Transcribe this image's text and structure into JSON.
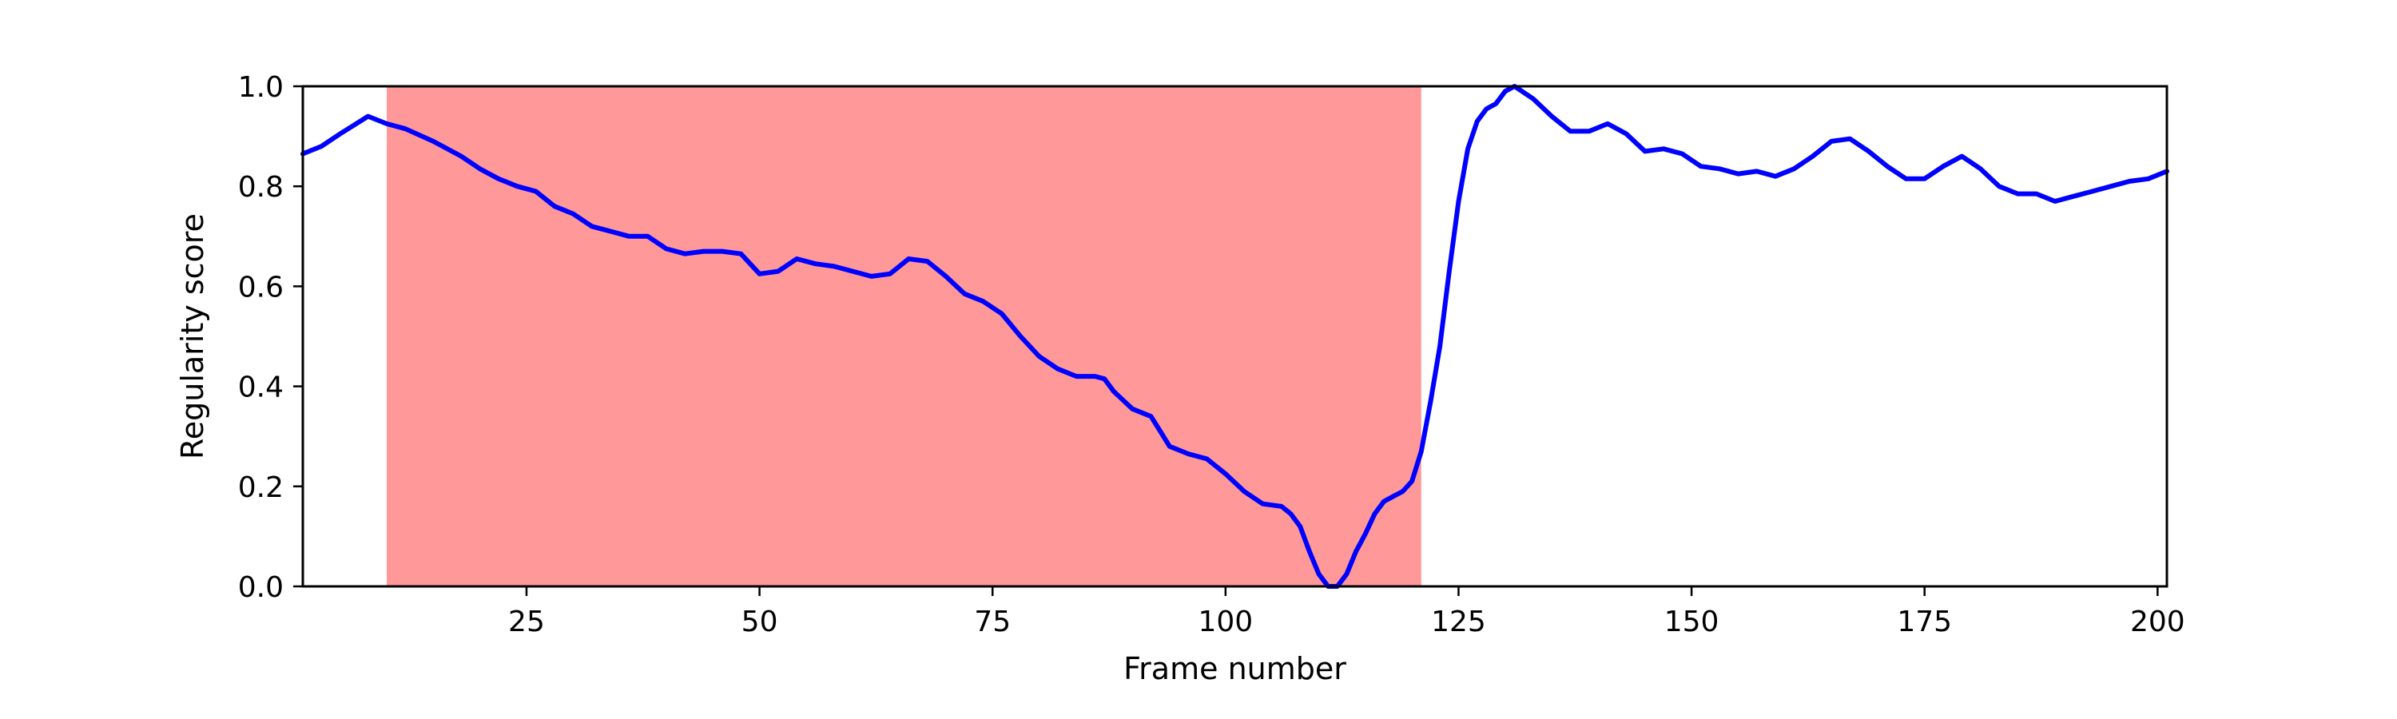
{
  "chart_data": {
    "type": "line",
    "title": "",
    "xlabel": "Frame number",
    "ylabel": "Regularity score",
    "xlim": [
      1,
      201
    ],
    "ylim": [
      0.0,
      1.0
    ],
    "x_ticks": [
      25,
      50,
      75,
      100,
      125,
      150,
      175,
      200
    ],
    "x_tick_labels": [
      "25",
      "50",
      "75",
      "100",
      "125",
      "150",
      "175",
      "200"
    ],
    "y_ticks": [
      0.0,
      0.2,
      0.4,
      0.6,
      0.8,
      1.0
    ],
    "y_tick_labels": [
      "0.0",
      "0.2",
      "0.4",
      "0.6",
      "0.8",
      "1.0"
    ],
    "grid": false,
    "highlight_region": {
      "x_start": 10,
      "x_end": 121,
      "color": "#ff9999"
    },
    "series": [
      {
        "color": "#0000ff",
        "points": [
          [
            1,
            0.865
          ],
          [
            3,
            0.88
          ],
          [
            5,
            0.905
          ],
          [
            8,
            0.94
          ],
          [
            10,
            0.925
          ],
          [
            12,
            0.915
          ],
          [
            15,
            0.89
          ],
          [
            18,
            0.86
          ],
          [
            20,
            0.835
          ],
          [
            22,
            0.815
          ],
          [
            24,
            0.8
          ],
          [
            26,
            0.79
          ],
          [
            28,
            0.76
          ],
          [
            30,
            0.745
          ],
          [
            32,
            0.72
          ],
          [
            34,
            0.71
          ],
          [
            36,
            0.7
          ],
          [
            38,
            0.7
          ],
          [
            40,
            0.675
          ],
          [
            42,
            0.665
          ],
          [
            44,
            0.67
          ],
          [
            46,
            0.67
          ],
          [
            48,
            0.665
          ],
          [
            50,
            0.625
          ],
          [
            52,
            0.63
          ],
          [
            54,
            0.655
          ],
          [
            56,
            0.645
          ],
          [
            58,
            0.64
          ],
          [
            60,
            0.63
          ],
          [
            62,
            0.62
          ],
          [
            64,
            0.625
          ],
          [
            66,
            0.655
          ],
          [
            68,
            0.65
          ],
          [
            70,
            0.62
          ],
          [
            72,
            0.585
          ],
          [
            74,
            0.57
          ],
          [
            76,
            0.545
          ],
          [
            78,
            0.5
          ],
          [
            80,
            0.46
          ],
          [
            82,
            0.435
          ],
          [
            84,
            0.42
          ],
          [
            86,
            0.42
          ],
          [
            87,
            0.415
          ],
          [
            88,
            0.39
          ],
          [
            90,
            0.355
          ],
          [
            92,
            0.34
          ],
          [
            93,
            0.31
          ],
          [
            94,
            0.28
          ],
          [
            96,
            0.265
          ],
          [
            98,
            0.255
          ],
          [
            100,
            0.225
          ],
          [
            102,
            0.19
          ],
          [
            104,
            0.165
          ],
          [
            106,
            0.16
          ],
          [
            107,
            0.145
          ],
          [
            108,
            0.12
          ],
          [
            109,
            0.07
          ],
          [
            110,
            0.025
          ],
          [
            111,
            0.0
          ],
          [
            112,
            0.0
          ],
          [
            113,
            0.025
          ],
          [
            114,
            0.07
          ],
          [
            115,
            0.105
          ],
          [
            116,
            0.145
          ],
          [
            117,
            0.17
          ],
          [
            118,
            0.18
          ],
          [
            119,
            0.19
          ],
          [
            120,
            0.21
          ],
          [
            121,
            0.27
          ],
          [
            122,
            0.37
          ],
          [
            123,
            0.48
          ],
          [
            124,
            0.63
          ],
          [
            125,
            0.77
          ],
          [
            126,
            0.875
          ],
          [
            127,
            0.93
          ],
          [
            128,
            0.955
          ],
          [
            129,
            0.965
          ],
          [
            130,
            0.99
          ],
          [
            131,
            1.0
          ],
          [
            133,
            0.975
          ],
          [
            135,
            0.94
          ],
          [
            137,
            0.91
          ],
          [
            139,
            0.91
          ],
          [
            141,
            0.925
          ],
          [
            143,
            0.905
          ],
          [
            145,
            0.87
          ],
          [
            147,
            0.875
          ],
          [
            149,
            0.865
          ],
          [
            151,
            0.84
          ],
          [
            153,
            0.835
          ],
          [
            155,
            0.825
          ],
          [
            157,
            0.83
          ],
          [
            159,
            0.82
          ],
          [
            161,
            0.835
          ],
          [
            163,
            0.86
          ],
          [
            165,
            0.89
          ],
          [
            167,
            0.895
          ],
          [
            169,
            0.87
          ],
          [
            171,
            0.84
          ],
          [
            173,
            0.815
          ],
          [
            175,
            0.815
          ],
          [
            177,
            0.84
          ],
          [
            179,
            0.86
          ],
          [
            181,
            0.835
          ],
          [
            183,
            0.8
          ],
          [
            185,
            0.785
          ],
          [
            187,
            0.785
          ],
          [
            189,
            0.77
          ],
          [
            191,
            0.78
          ],
          [
            193,
            0.79
          ],
          [
            195,
            0.8
          ],
          [
            197,
            0.81
          ],
          [
            199,
            0.815
          ],
          [
            201,
            0.83
          ]
        ]
      }
    ]
  }
}
